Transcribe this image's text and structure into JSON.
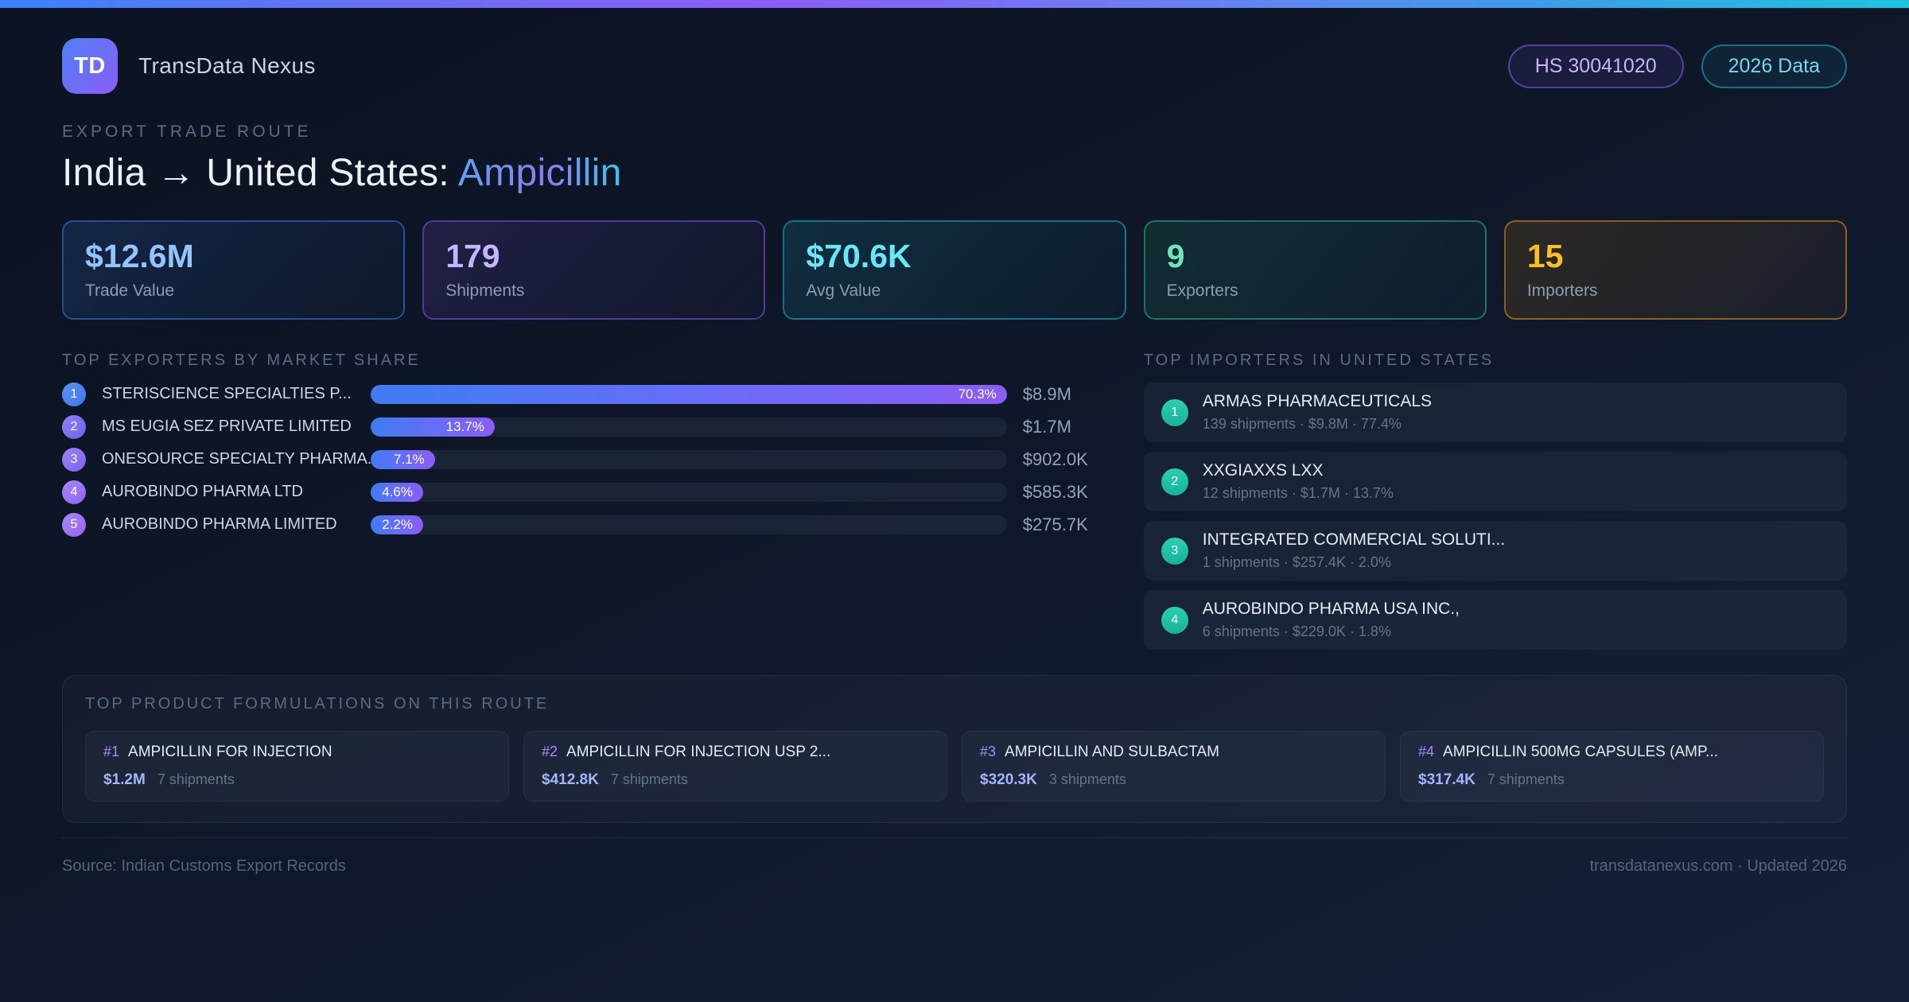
{
  "brand": {
    "logo_text": "TD",
    "name": "TransData Nexus"
  },
  "header_badges": {
    "hs_code": "HS 30041020",
    "year": "2026 Data"
  },
  "route": {
    "eyebrow": "EXPORT TRADE ROUTE",
    "origin": "India",
    "arrow": "→",
    "destination": "United States:",
    "product": "Ampicillin"
  },
  "stats": [
    {
      "value": "$12.6M",
      "label": "Trade Value"
    },
    {
      "value": "179",
      "label": "Shipments"
    },
    {
      "value": "$70.6K",
      "label": "Avg Value"
    },
    {
      "value": "9",
      "label": "Exporters"
    },
    {
      "value": "15",
      "label": "Importers"
    }
  ],
  "exporters": {
    "title": "TOP EXPORTERS BY MARKET SHARE",
    "max_share_pct": 70.3,
    "items": [
      {
        "rank": "1",
        "name": "STERISCIENCE SPECIALTIES P...",
        "share_pct": 70.3,
        "share_label": "70.3%",
        "value": "$8.9M"
      },
      {
        "rank": "2",
        "name": "MS EUGIA SEZ PRIVATE LIMITED",
        "share_pct": 13.7,
        "share_label": "13.7%",
        "value": "$1.7M"
      },
      {
        "rank": "3",
        "name": "ONESOURCE SPECIALTY PHARMA...",
        "share_pct": 7.1,
        "share_label": "7.1%",
        "value": "$902.0K"
      },
      {
        "rank": "4",
        "name": "AUROBINDO PHARMA LTD",
        "share_pct": 4.6,
        "share_label": "4.6%",
        "value": "$585.3K"
      },
      {
        "rank": "5",
        "name": "AUROBINDO PHARMA LIMITED",
        "share_pct": 2.2,
        "share_label": "2.2%",
        "value": "$275.7K"
      }
    ]
  },
  "importers": {
    "title": "TOP IMPORTERS IN UNITED STATES",
    "items": [
      {
        "rank": "1",
        "name": "ARMAS PHARMACEUTICALS",
        "meta": "139 shipments · $9.8M · 77.4%"
      },
      {
        "rank": "2",
        "name": "XXGIAXXS LXX",
        "meta": "12 shipments · $1.7M · 13.7%"
      },
      {
        "rank": "3",
        "name": "INTEGRATED COMMERCIAL SOLUTI...",
        "meta": "1 shipments · $257.4K · 2.0%"
      },
      {
        "rank": "4",
        "name": "AUROBINDO PHARMA USA INC.,",
        "meta": "6 shipments · $229.0K · 1.8%"
      }
    ]
  },
  "products": {
    "title": "TOP PRODUCT FORMULATIONS ON THIS ROUTE",
    "items": [
      {
        "rank": "#1",
        "name": "AMPICILLIN FOR INJECTION",
        "value": "$1.2M",
        "shipments": "7 shipments"
      },
      {
        "rank": "#2",
        "name": "AMPICILLIN FOR INJECTION USP 2...",
        "value": "$412.8K",
        "shipments": "7 shipments"
      },
      {
        "rank": "#3",
        "name": "AMPICILLIN AND SULBACTAM",
        "value": "$320.3K",
        "shipments": "3 shipments"
      },
      {
        "rank": "#4",
        "name": "AMPICILLIN 500MG CAPSULES (AMP...",
        "value": "$317.4K",
        "shipments": "7 shipments"
      }
    ]
  },
  "footer": {
    "source": "Source: Indian Customs Export Records",
    "site": "transdatanexus.com · Updated 2026"
  },
  "colors": {
    "accent_blue": "#3b82f6",
    "accent_purple": "#8b5cf6",
    "accent_cyan": "#22d3ee",
    "accent_green": "#34d399",
    "accent_amber": "#f59e0b",
    "background": "#0e1728"
  }
}
